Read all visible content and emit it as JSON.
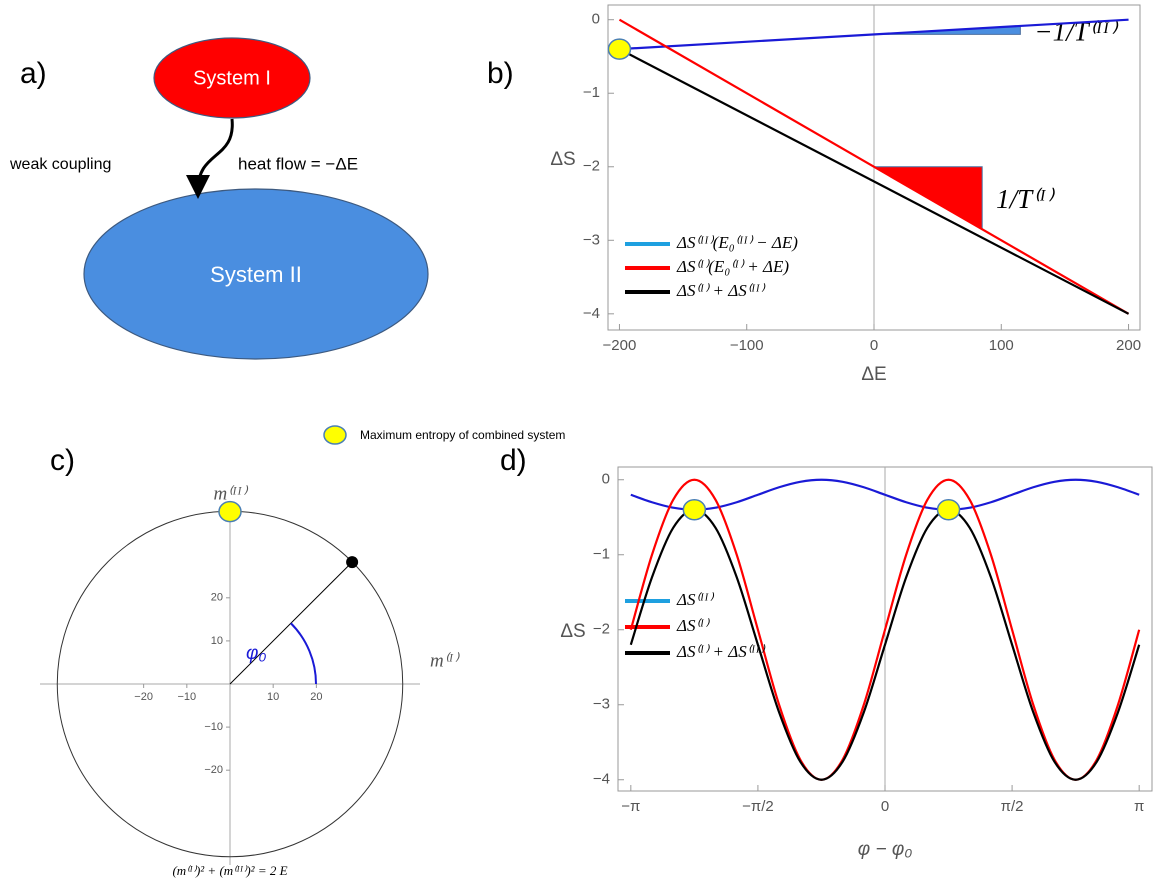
{
  "panel_labels": [
    "a)",
    "b)",
    "c)",
    "d)"
  ],
  "diagram": {
    "system_1": "System I",
    "system_2": "System II",
    "coupling": "weak coupling",
    "flow": "heat flow = −ΔE"
  },
  "marker_note": "Maximum entropy of combined system",
  "chart_data": [
    {
      "type": "line",
      "xlabel": "ΔE",
      "ylabel": "ΔS",
      "x": [
        -200,
        200
      ],
      "series": [
        {
          "name": "ΔS⁽ᴵᴵ⁾(E₀⁽ᴵᴵ⁾ − ΔE)",
          "color": "#1a1ad6",
          "legend_color": "#1ea0e0",
          "values": [
            -0.4,
            0
          ]
        },
        {
          "name": "ΔS⁽ᴵ⁾(E₀⁽ᴵ⁾ + ΔE)",
          "color": "#ff0000",
          "legend_color": "#ff0000",
          "values": [
            0,
            -4
          ]
        },
        {
          "name": "ΔS⁽ᴵ⁾ + ΔS⁽ᴵᴵ⁾",
          "color": "#000000",
          "legend_color": "#000000",
          "values": [
            -0.4,
            -4
          ]
        }
      ],
      "xlim": [
        -209,
        209
      ],
      "ylim": [
        -4.22,
        0.2
      ],
      "xticks": [
        {
          "value": -200,
          "label": "−200"
        },
        {
          "value": -100,
          "label": "−100"
        },
        0,
        100,
        200
      ],
      "yticks": [
        0,
        {
          "value": -1,
          "label": "−1"
        },
        {
          "value": -2,
          "label": "−2"
        },
        {
          "value": -3,
          "label": "−3"
        },
        {
          "value": -4,
          "label": "−4"
        }
      ],
      "markers": [
        {
          "x": -200,
          "y": -0.4
        }
      ],
      "triangles": [
        {
          "x": [
            0,
            115,
            115
          ],
          "y": [
            -0.2,
            -0.2,
            -0.085
          ],
          "color": "#4a8ee0",
          "label": "−1/T⁽ᴵᴵ⁾"
        },
        {
          "x": [
            0,
            85,
            85
          ],
          "y": [
            -2,
            -2,
            -2.85
          ],
          "color": "#ff0000",
          "label": "1/T⁽ᴵ⁾"
        }
      ]
    },
    {
      "type": "circle",
      "xlabel": "m⁽ᴵ⁾",
      "ylabel": "m⁽ᴵᴵ⁾",
      "angle_label": "φ₀",
      "caption": "(m⁽ᴵ⁾)² + (m⁽ᴵᴵ⁾)² = 2 E",
      "radius": 40,
      "x": [
        28.28
      ],
      "y": [
        28.28
      ],
      "xlim": [
        -44,
        44
      ],
      "ylim": [
        -42,
        42
      ],
      "xticks": [
        {
          "value": -20,
          "label": "−20"
        },
        {
          "value": -10,
          "label": "−10"
        },
        10,
        20
      ],
      "yticks": [
        {
          "value": -20,
          "label": "−20"
        },
        {
          "value": -10,
          "label": "−10"
        },
        10,
        20
      ],
      "markers": [
        {
          "x": 0,
          "y": 40
        }
      ]
    },
    {
      "type": "line",
      "xlabel": "φ − φ₀",
      "ylabel": "ΔS",
      "x": [
        -3.1416,
        -2.8798,
        -2.618,
        -2.3562,
        -2.0944,
        -1.8326,
        -1.5708,
        -1.309,
        -1.0472,
        -0.7854,
        -0.5236,
        -0.2618,
        0,
        0.2618,
        0.5236,
        0.7854,
        1.0472,
        1.309,
        1.5708,
        1.8326,
        2.0944,
        2.3562,
        2.618,
        2.8798,
        3.1416
      ],
      "series": [
        {
          "name": "ΔS⁽ᴵᴵ⁾",
          "color": "#1a1ad6",
          "legend_color": "#1ea0e0",
          "values": [
            -0.2,
            -0.3,
            -0.373,
            -0.4,
            -0.373,
            -0.3,
            -0.2,
            -0.1,
            -0.027,
            0,
            -0.027,
            -0.1,
            -0.2,
            -0.3,
            -0.373,
            -0.4,
            -0.373,
            -0.3,
            -0.2,
            -0.1,
            -0.027,
            0,
            -0.027,
            -0.1,
            -0.2
          ]
        },
        {
          "name": "ΔS⁽ᴵ⁾",
          "color": "#ff0000",
          "legend_color": "#ff0000",
          "values": [
            -2,
            -1,
            -0.268,
            0,
            -0.268,
            -1,
            -2,
            -3,
            -3.732,
            -4,
            -3.732,
            -3,
            -2,
            -1,
            -0.268,
            0,
            -0.268,
            -1,
            -2,
            -3,
            -3.732,
            -4,
            -3.732,
            -3,
            -2
          ]
        },
        {
          "name": "ΔS⁽ᴵ⁾ + ΔS⁽ᴵᴵ⁾",
          "color": "#000000",
          "legend_color": "#000000",
          "values": [
            -2.2,
            -1.3,
            -0.641,
            -0.4,
            -0.641,
            -1.3,
            -2.2,
            -3.1,
            -3.759,
            -4,
            -3.759,
            -3.1,
            -2.2,
            -1.3,
            -0.641,
            -0.4,
            -0.641,
            -1.3,
            -2.2,
            -3.1,
            -3.759,
            -4,
            -3.759,
            -3.1,
            -2.2
          ]
        }
      ],
      "xlim": [
        -3.3,
        3.3
      ],
      "ylim": [
        -4.15,
        0.17
      ],
      "xticks": [
        {
          "value": -3.1416,
          "label": "−π"
        },
        {
          "value": -1.5708,
          "label": "−π/2"
        },
        0,
        {
          "value": 1.5708,
          "label": "π/2"
        },
        {
          "value": 3.1416,
          "label": "π"
        }
      ],
      "yticks": [
        0,
        {
          "value": -1,
          "label": "−1"
        },
        {
          "value": -2,
          "label": "−2"
        },
        {
          "value": -3,
          "label": "−3"
        },
        {
          "value": -4,
          "label": "−4"
        }
      ],
      "markers": [
        {
          "x": -2.3562,
          "y": -0.4
        },
        {
          "x": 0.7854,
          "y": -0.4
        }
      ]
    }
  ]
}
